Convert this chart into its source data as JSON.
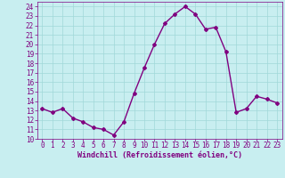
{
  "x": [
    0,
    1,
    2,
    3,
    4,
    5,
    6,
    7,
    8,
    9,
    10,
    11,
    12,
    13,
    14,
    15,
    16,
    17,
    18,
    19,
    20,
    21,
    22,
    23
  ],
  "y": [
    13.2,
    12.8,
    13.2,
    12.2,
    11.8,
    11.2,
    11.0,
    10.4,
    11.8,
    14.8,
    17.5,
    20.0,
    22.2,
    23.2,
    24.0,
    23.2,
    21.6,
    21.8,
    19.2,
    12.8,
    13.2,
    14.5,
    14.2,
    13.8
  ],
  "line_color": "#800080",
  "marker": "D",
  "marker_size": 2.0,
  "bg_color": "#c8eef0",
  "grid_color": "#a0d8d8",
  "xlabel": "Windchill (Refroidissement éolien,°C)",
  "xlabel_color": "#800080",
  "tick_color": "#800080",
  "ylim": [
    10,
    24.5
  ],
  "xlim": [
    -0.5,
    23.5
  ],
  "yticks": [
    10,
    11,
    12,
    13,
    14,
    15,
    16,
    17,
    18,
    19,
    20,
    21,
    22,
    23,
    24
  ],
  "xticks": [
    0,
    1,
    2,
    3,
    4,
    5,
    6,
    7,
    8,
    9,
    10,
    11,
    12,
    13,
    14,
    15,
    16,
    17,
    18,
    19,
    20,
    21,
    22,
    23
  ],
  "line_width": 1.0,
  "tick_fontsize": 5.5,
  "xlabel_fontsize": 6.0
}
